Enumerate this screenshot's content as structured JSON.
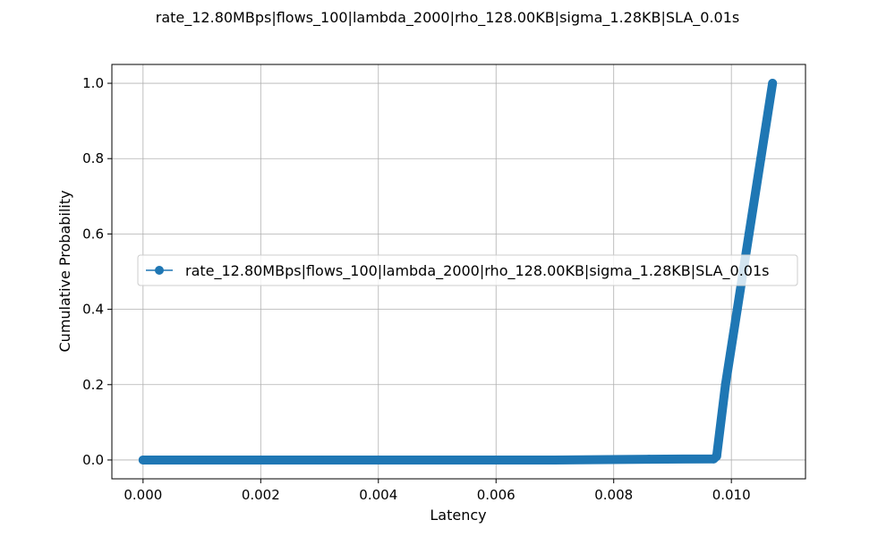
{
  "chart_data": {
    "type": "line",
    "title": "rate_12.80MBps|flows_100|lambda_2000|rho_128.00KB|sigma_1.28KB|SLA_0.01s",
    "xlabel": "Latency",
    "ylabel": "Cumulative Probability",
    "xlim": [
      -0.00053,
      0.01126
    ],
    "ylim": [
      -0.05,
      1.05
    ],
    "xticks": [
      0.0,
      0.002,
      0.004,
      0.006,
      0.008,
      0.01
    ],
    "xtick_labels": [
      "0.000",
      "0.002",
      "0.004",
      "0.006",
      "0.008",
      "0.010"
    ],
    "yticks": [
      0.0,
      0.2,
      0.4,
      0.6,
      0.8,
      1.0
    ],
    "ytick_labels": [
      "0.0",
      "0.2",
      "0.4",
      "0.6",
      "0.8",
      "1.0"
    ],
    "grid": true,
    "legend_position": "center-left",
    "series": [
      {
        "name": "rate_12.80MBps|flows_100|lambda_2000|rho_128.00KB|sigma_1.28KB|SLA_0.01s",
        "color": "#1f77b4",
        "marker": "circle",
        "x": [
          0.0,
          0.001,
          0.002,
          0.003,
          0.004,
          0.005,
          0.006,
          0.007,
          0.0086,
          0.0097,
          0.00975,
          0.0099,
          0.0101,
          0.0103,
          0.0105,
          0.0107
        ],
        "y": [
          0.0,
          0.0,
          0.0,
          0.0,
          0.0,
          0.0,
          0.0,
          0.0,
          0.002,
          0.003,
          0.01,
          0.2,
          0.4,
          0.6,
          0.8,
          1.0
        ]
      }
    ]
  }
}
